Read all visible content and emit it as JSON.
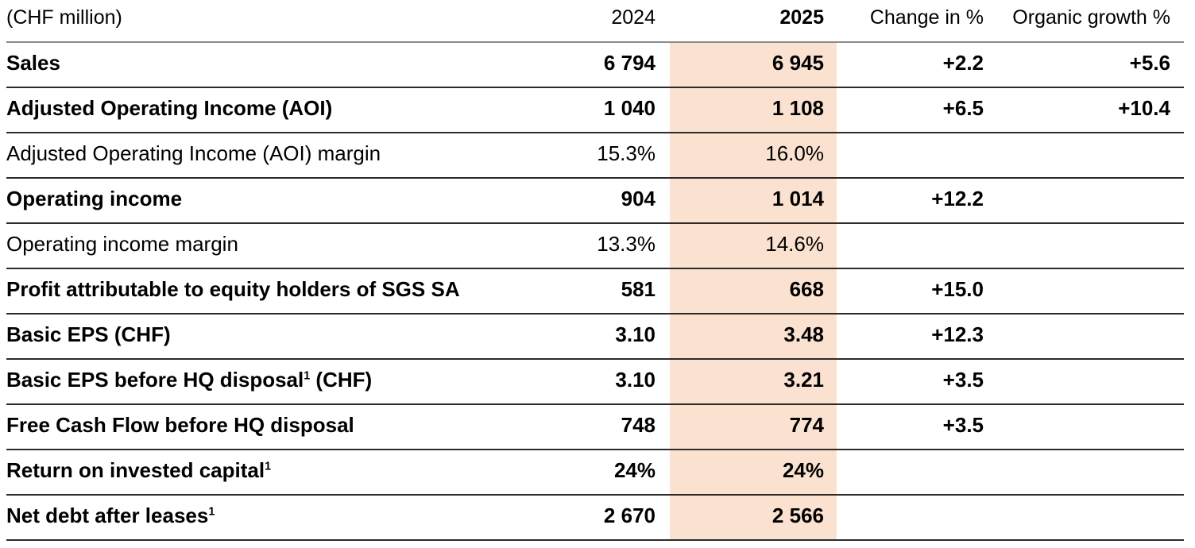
{
  "header": {
    "unit_label": "(CHF million)",
    "col_2024": "2024",
    "col_2025": "2025",
    "col_change": "Change in %",
    "col_organic": "Organic growth %"
  },
  "styles": {
    "highlight_color": "#fbe2d0",
    "header_rule_color": "#8c8c8c",
    "row_rule_color": "#2b2b2b",
    "text_color": "#000000"
  },
  "rows": [
    {
      "label": "Sales",
      "sup": "",
      "suffix": "",
      "bold": true,
      "v2024": "6 794",
      "v2025": "6 945",
      "change": "+2.2",
      "organic": "+5.6"
    },
    {
      "label": "Adjusted Operating Income (AOI)",
      "sup": "",
      "suffix": "",
      "bold": true,
      "v2024": "1 040",
      "v2025": "1 108",
      "change": "+6.5",
      "organic": "+10.4"
    },
    {
      "label": "Adjusted Operating Income (AOI) margin",
      "sup": "",
      "suffix": "",
      "bold": false,
      "v2024": "15.3%",
      "v2025": "16.0%",
      "change": "",
      "organic": ""
    },
    {
      "label": "Operating income",
      "sup": "",
      "suffix": "",
      "bold": true,
      "v2024": "904",
      "v2025": "1 014",
      "change": "+12.2",
      "organic": ""
    },
    {
      "label": "Operating income margin",
      "sup": "",
      "suffix": "",
      "bold": false,
      "v2024": "13.3%",
      "v2025": "14.6%",
      "change": "",
      "organic": ""
    },
    {
      "label": "Profit attributable to equity holders of SGS SA",
      "sup": "",
      "suffix": "",
      "bold": true,
      "v2024": "581",
      "v2025": "668",
      "change": "+15.0",
      "organic": ""
    },
    {
      "label": "Basic EPS (CHF)",
      "sup": "",
      "suffix": "",
      "bold": true,
      "v2024": "3.10",
      "v2025": "3.48",
      "change": "+12.3",
      "organic": ""
    },
    {
      "label": "Basic EPS before HQ disposal",
      "sup": "1",
      "suffix": " (CHF)",
      "bold": true,
      "v2024": "3.10",
      "v2025": "3.21",
      "change": "+3.5",
      "organic": ""
    },
    {
      "label": "Free Cash Flow before HQ disposal",
      "sup": "",
      "suffix": "",
      "bold": true,
      "v2024": "748",
      "v2025": "774",
      "change": "+3.5",
      "organic": ""
    },
    {
      "label": "Return on invested capital",
      "sup": "1",
      "suffix": "",
      "bold": true,
      "v2024": "24%",
      "v2025": "24%",
      "change": "",
      "organic": ""
    },
    {
      "label": "Net debt after leases",
      "sup": "1",
      "suffix": "",
      "bold": true,
      "v2024": "2 670",
      "v2025": "2 566",
      "change": "",
      "organic": ""
    }
  ]
}
